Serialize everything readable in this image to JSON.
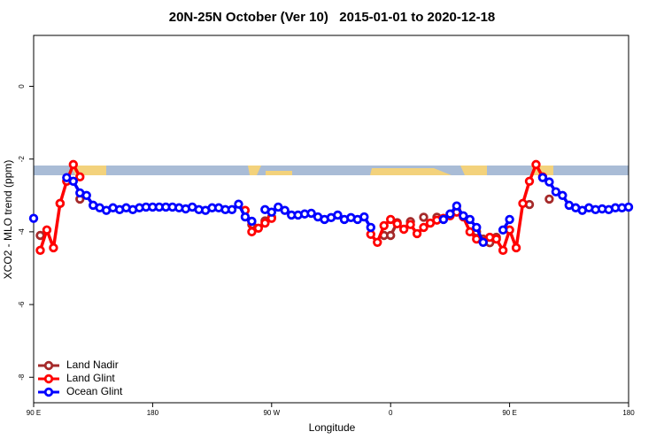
{
  "chart_data": {
    "type": "line",
    "title": "20N-25N October (Ver 10)   2015-01-01 to 2020-12-18",
    "xlabel": "Longitude",
    "ylabel": "XCO2 - MLO trend (ppm)",
    "xlim": [
      90,
      540
    ],
    "xticks": [
      {
        "value": 90,
        "label": "90 E"
      },
      {
        "value": 180,
        "label": "180"
      },
      {
        "value": 270,
        "label": "90 W"
      },
      {
        "value": 360,
        "label": "0"
      },
      {
        "value": 450,
        "label": "90 E"
      },
      {
        "value": 540,
        "label": "180"
      }
    ],
    "ylim": [
      -8.7,
      1.4
    ],
    "yticks": [
      0,
      -2,
      -4,
      -6,
      -8
    ],
    "grid": false,
    "legend": "bottom-left",
    "x": [
      90,
      95,
      100,
      105,
      110,
      115,
      120,
      125,
      130,
      135,
      140,
      145,
      150,
      155,
      160,
      165,
      170,
      175,
      180,
      185,
      190,
      195,
      200,
      205,
      210,
      215,
      220,
      225,
      230,
      235,
      240,
      245,
      250,
      255,
      260,
      265,
      270,
      275,
      280,
      285,
      290,
      295,
      300,
      305,
      310,
      315,
      320,
      325,
      330,
      335,
      340,
      345,
      350,
      355,
      360,
      365,
      370,
      375,
      380,
      385,
      390,
      395,
      400,
      405,
      410,
      415,
      420,
      425,
      430,
      435,
      440,
      445,
      450,
      455,
      460,
      465,
      470,
      475,
      480,
      485,
      490,
      495,
      500,
      505,
      510,
      515,
      520,
      525,
      530,
      535,
      540
    ],
    "series": [
      {
        "name": "Land Nadir",
        "color": "#a52a2a",
        "values": [
          null,
          -4.1,
          null,
          null,
          -3.22,
          null,
          null,
          -3.1,
          null,
          null,
          null,
          null,
          null,
          null,
          null,
          null,
          null,
          null,
          null,
          null,
          null,
          null,
          null,
          null,
          null,
          null,
          null,
          null,
          null,
          null,
          null,
          null,
          null,
          -3.8,
          null,
          -3.7,
          -3.6,
          null,
          null,
          null,
          null,
          null,
          null,
          null,
          null,
          null,
          null,
          null,
          null,
          null,
          null,
          null,
          null,
          -4.1,
          -4.1,
          -3.75,
          null,
          -3.72,
          null,
          -3.6,
          null,
          -3.6,
          null,
          null,
          -3.4,
          null,
          null,
          -4.0,
          -4.2,
          -4.3,
          -4.15,
          null,
          null,
          null,
          null,
          -3.25,
          null,
          null,
          -3.1,
          null,
          null,
          null,
          null,
          null,
          null,
          null,
          null,
          null,
          null,
          null,
          null
        ]
      },
      {
        "name": "Land Glint",
        "color": "#ff0000",
        "values": [
          null,
          -4.51,
          -3.95,
          -4.44,
          -3.22,
          -2.61,
          -2.15,
          -2.49,
          null,
          null,
          null,
          null,
          null,
          null,
          null,
          null,
          null,
          null,
          null,
          null,
          null,
          null,
          null,
          null,
          null,
          null,
          null,
          null,
          null,
          null,
          null,
          null,
          -3.41,
          -4.0,
          -3.9,
          -3.76,
          -3.63,
          null,
          null,
          null,
          null,
          null,
          null,
          null,
          null,
          null,
          null,
          null,
          null,
          null,
          null,
          -4.07,
          -4.29,
          -3.83,
          -3.66,
          -3.78,
          -3.93,
          -3.8,
          -4.05,
          -3.88,
          -3.76,
          -3.68,
          -3.63,
          -3.56,
          -3.46,
          -3.59,
          -4.0,
          -4.2,
          -4.27,
          -4.15,
          -4.2,
          -4.51,
          -3.95,
          -4.44,
          -3.22,
          -2.61,
          -2.15,
          -2.49,
          null,
          null,
          null,
          null,
          null,
          null,
          null,
          null,
          null,
          null,
          null,
          null,
          null
        ]
      },
      {
        "name": "Ocean Glint",
        "color": "#0000ff",
        "values": [
          -3.63,
          null,
          null,
          null,
          null,
          -2.51,
          -2.61,
          -2.93,
          -3.0,
          -3.27,
          -3.34,
          -3.41,
          -3.34,
          -3.39,
          -3.34,
          -3.39,
          -3.34,
          -3.32,
          -3.32,
          -3.32,
          -3.32,
          -3.32,
          -3.34,
          -3.37,
          -3.32,
          -3.39,
          -3.41,
          -3.34,
          -3.34,
          -3.39,
          -3.39,
          -3.24,
          -3.59,
          -3.71,
          null,
          -3.39,
          -3.46,
          -3.32,
          -3.41,
          -3.54,
          -3.54,
          -3.51,
          -3.49,
          -3.59,
          -3.66,
          -3.61,
          -3.54,
          -3.66,
          -3.61,
          -3.66,
          -3.59,
          -3.88,
          null,
          null,
          null,
          null,
          null,
          null,
          null,
          null,
          null,
          null,
          -3.66,
          -3.51,
          -3.29,
          -3.56,
          -3.66,
          -3.88,
          -4.29,
          null,
          null,
          -3.95,
          -3.66,
          null,
          null,
          null,
          null,
          -2.51,
          -2.63,
          -2.9,
          -3.0,
          -3.27,
          -3.34,
          -3.41,
          -3.34,
          -3.39,
          -3.37,
          -3.39,
          -3.34,
          -3.34,
          -3.32
        ]
      }
    ]
  }
}
